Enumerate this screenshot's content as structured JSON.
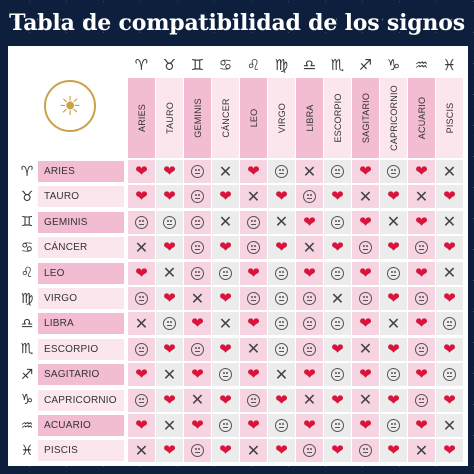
{
  "title": "Tabla de compatibilidad de los signos",
  "emblem_icon": "sun-zodiac-emblem-icon",
  "signs": [
    {
      "name": "ARIES",
      "symbol": "♈"
    },
    {
      "name": "TAURO",
      "symbol": "♉"
    },
    {
      "name": "GEMINIS",
      "symbol": "♊"
    },
    {
      "name": "CÁNCER",
      "symbol": "♋"
    },
    {
      "name": "LEO",
      "symbol": "♌"
    },
    {
      "name": "VIRGO",
      "symbol": "♍"
    },
    {
      "name": "LIBRA",
      "symbol": "♎"
    },
    {
      "name": "ESCORPIO",
      "symbol": "♏"
    },
    {
      "name": "SAGITARIO",
      "symbol": "♐"
    },
    {
      "name": "CAPRICORNIO",
      "symbol": "♑"
    },
    {
      "name": "ACUARIO",
      "symbol": "♒"
    },
    {
      "name": "PISCIS",
      "symbol": "♓"
    }
  ],
  "legend_marks": {
    "H": "heart",
    "X": "cross",
    "N": "neutral"
  },
  "colors": {
    "heart": "#d8143d",
    "pink": "#f2bcd2",
    "light_pink": "#fbe6ee",
    "background": "#0d1f3c"
  },
  "matrix": [
    [
      "H",
      "H",
      "N",
      "X",
      "H",
      "N",
      "X",
      "N",
      "H",
      "N",
      "H",
      "X"
    ],
    [
      "H",
      "H",
      "N",
      "H",
      "X",
      "H",
      "N",
      "H",
      "X",
      "H",
      "X",
      "H"
    ],
    [
      "N",
      "N",
      "N",
      "X",
      "N",
      "X",
      "H",
      "N",
      "H",
      "X",
      "H",
      "X"
    ],
    [
      "X",
      "H",
      "N",
      "H",
      "N",
      "H",
      "X",
      "H",
      "N",
      "H",
      "N",
      "H"
    ],
    [
      "H",
      "X",
      "N",
      "N",
      "H",
      "N",
      "H",
      "N",
      "H",
      "N",
      "H",
      "X"
    ],
    [
      "N",
      "H",
      "X",
      "H",
      "N",
      "N",
      "N",
      "X",
      "N",
      "H",
      "N",
      "H"
    ],
    [
      "X",
      "N",
      "H",
      "X",
      "H",
      "N",
      "N",
      "N",
      "H",
      "X",
      "H",
      "N"
    ],
    [
      "N",
      "H",
      "N",
      "H",
      "X",
      "N",
      "N",
      "H",
      "X",
      "H",
      "N",
      "H"
    ],
    [
      "H",
      "X",
      "H",
      "N",
      "H",
      "X",
      "H",
      "N",
      "H",
      "N",
      "H",
      "N"
    ],
    [
      "N",
      "H",
      "X",
      "H",
      "N",
      "H",
      "X",
      "H",
      "X",
      "H",
      "N",
      "H"
    ],
    [
      "H",
      "X",
      "H",
      "N",
      "H",
      "N",
      "H",
      "N",
      "H",
      "N",
      "H",
      "X"
    ],
    [
      "X",
      "H",
      "N",
      "H",
      "X",
      "H",
      "N",
      "H",
      "N",
      "H",
      "X",
      "H"
    ]
  ]
}
